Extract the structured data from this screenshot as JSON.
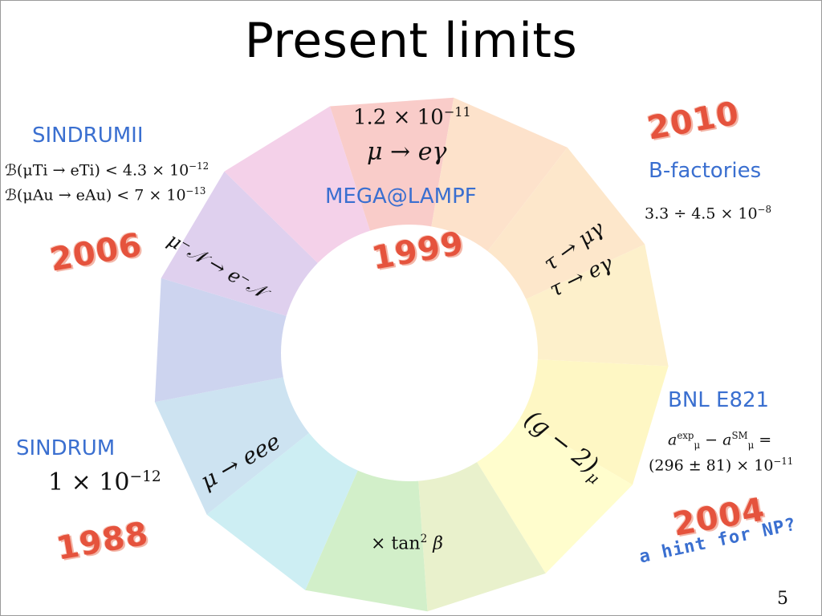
{
  "slide": {
    "title": "Present limits",
    "page_number": "5"
  },
  "colors": {
    "segments": [
      "#f9ccc9",
      "#fde2cb",
      "#fde7cb",
      "#fdf0cb",
      "#fef7c4",
      "#fffdcd",
      "#e9f1cc",
      "#d2efc9",
      "#cdeef3",
      "#cde3f1",
      "#cdd4ef",
      "#dfd0ee",
      "#f4d1e9"
    ],
    "year": "#e5533d",
    "experiment": "#3a6fd0"
  },
  "experiments": {
    "sindrum2": "SINDRUMII",
    "mega": "MEGA@LAMPF",
    "bfactories": "B-factories",
    "bnl": "BNL E821",
    "sindrum": "SINDRUM"
  },
  "limits": {
    "sindrum2_ti": "ℬ(μTi → eTi) < 4.3 × 10",
    "sindrum2_ti_exp": "−12",
    "sindrum2_au": "ℬ(μAu → eAu) < 7 × 10",
    "sindrum2_au_exp": "−13",
    "mega_base": "1.2 × 10",
    "mega_exp": "−11",
    "bfact_base": "3.3 ÷ 4.5 × 10",
    "bfact_exp": "−8",
    "bnl_line1_a": "a",
    "bnl_line1_a_sup": "exp",
    "bnl_line1_a_sub": "μ",
    "bnl_line1_minus": " − a",
    "bnl_line1_b_sup": "SM",
    "bnl_line1_b_sub": "μ",
    "bnl_line1_eq": " =",
    "bnl_line2_base": "(296 ± 81) × 10",
    "bnl_line2_exp": "−11",
    "sindrum_base": "1 × 10",
    "sindrum_exp": "−12"
  },
  "processes": {
    "mu_e_gamma": "μ → eγ",
    "mu_conversion": "μ⁻𝒩 → e⁻𝒩",
    "tau_mu_gamma": "τ → μγ",
    "tau_e_gamma": "τ → eγ",
    "g_minus_2": "(g − 2)",
    "g_minus_2_sub": "μ",
    "mu_eee": "μ → eee",
    "tan_beta": "× tan",
    "tan_beta_sup": "2",
    "tan_beta_beta": " β"
  },
  "years": {
    "y2006": "2006",
    "y1999": "1999",
    "y2010": "2010",
    "y2004": "2004",
    "y1988": "1988"
  },
  "annotations": {
    "hint": "a hint for NP?"
  }
}
